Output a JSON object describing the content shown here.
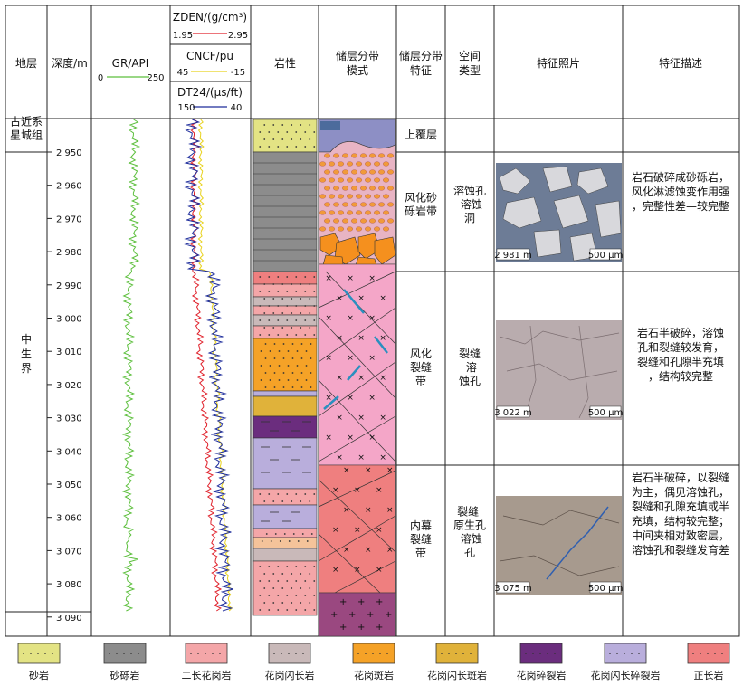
{
  "headers": {
    "stratum": "地层",
    "depth": "深度/m",
    "gr": {
      "title": "GR/API",
      "min": "0",
      "max": "250"
    },
    "zden": {
      "title": "ZDEN/(g/cm³)",
      "min": "1.95",
      "max": "2.95"
    },
    "cncf": {
      "title": "CNCF/pu",
      "min": "45",
      "max": "-15"
    },
    "dt24": {
      "title": "DT24/(μs/ft)",
      "min": "150",
      "max": "40"
    },
    "lithology": "岩性",
    "zonation_model": "储层分带模式",
    "zonation_feature": "储层分带特征",
    "space_type": "空间类型",
    "photo": "特征照片",
    "description": "特征描述"
  },
  "strata": [
    {
      "name": "古近系星城组"
    },
    {
      "name": "中生界"
    }
  ],
  "depth_ticks": [
    "2 950",
    "2 960",
    "2 970",
    "2 980",
    "2 990",
    "3 000",
    "3 010",
    "3 020",
    "3 030",
    "3 040",
    "3 050",
    "3 060",
    "3 070",
    "3 080",
    "3 090"
  ],
  "zones": [
    {
      "feature": "上覆层",
      "space": "",
      "description": ""
    },
    {
      "feature": "风化砂砾岩带",
      "space": "溶蚀孔 溶蚀洞",
      "photo_depth": "2 981 m",
      "scale": "500 μm",
      "description": "岩石破碎成砂砾岩，风化淋滤蚀变作用强，完整性差—较完整"
    },
    {
      "feature": "风化裂缝带",
      "space": "裂缝 溶蚀孔",
      "photo_depth": "3 022 m",
      "scale": "500 μm",
      "description": "岩石半破碎，溶蚀孔和裂缝较发育，裂缝和孔隙半充填，结构较完整"
    },
    {
      "feature": "内幕裂缝带",
      "space": "裂缝 原生孔 溶蚀孔",
      "photo_depth": "3 075 m",
      "scale": "500 μm",
      "description": "岩石半破碎，以裂缝为主，偶见溶蚀孔，裂缝和孔隙充填或半充填，结构较完整；中间夹相对致密层，溶蚀孔和裂缝发育差"
    }
  ],
  "legend": [
    {
      "label": "砂岩",
      "color": "#e3e384"
    },
    {
      "label": "砂砾岩",
      "color": "#8c8c8c"
    },
    {
      "label": "二长花岗岩",
      "color": "#f4a6a8"
    },
    {
      "label": "花岗闪长岩",
      "color": "#c9b9b9"
    },
    {
      "label": "花岗斑岩",
      "color": "#f5a227"
    },
    {
      "label": "花岗闪长斑岩",
      "color": "#e0b23a"
    },
    {
      "label": "花岗碎裂岩",
      "color": "#6b2d7e"
    },
    {
      "label": "花岗闪长碎裂岩",
      "color": "#b9aedc"
    },
    {
      "label": "正长岩",
      "color": "#ef7f7f"
    }
  ],
  "colors": {
    "gr": "#5cbf3c",
    "zden": "#e0202a",
    "cncf": "#e8d21c",
    "dt24": "#1d2c9b"
  }
}
